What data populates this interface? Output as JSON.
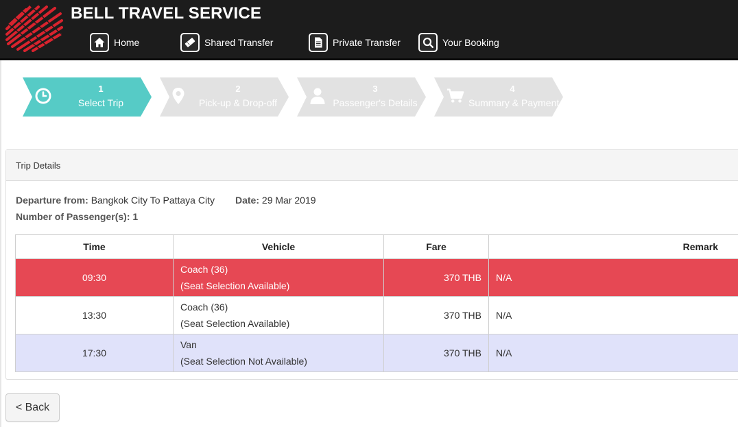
{
  "header": {
    "brand": "BELL TRAVEL SERVICE",
    "colors": {
      "background": "#1c1c1c",
      "logo_red": "#d9232e"
    },
    "nav": [
      {
        "label": "Home",
        "icon": "home-icon"
      },
      {
        "label": "Shared Transfer",
        "icon": "ticket-icon"
      },
      {
        "label": "Private Transfer",
        "icon": "document-icon"
      },
      {
        "label": "Your Booking",
        "icon": "search-icon"
      }
    ]
  },
  "steps": [
    {
      "number": "1",
      "label": "Select Trip",
      "icon": "clock-icon",
      "active": true
    },
    {
      "number": "2",
      "label": "Pick-up & Drop-off",
      "icon": "map-pin-icon",
      "active": false
    },
    {
      "number": "3",
      "label": "Passenger's Details",
      "icon": "user-icon",
      "active": false
    },
    {
      "number": "4",
      "label": "Summary & Payment",
      "icon": "cart-icon",
      "active": false
    }
  ],
  "step_colors": {
    "active": "#56cbc6",
    "inactive": "#e2e2e2"
  },
  "trip": {
    "panel_title": "Trip Details",
    "departure_label": "Departure from:",
    "departure_value": "Bangkok City To Pattaya City",
    "date_label": "Date:",
    "date_value": "29 Mar 2019",
    "passengers_label": "Number of Passenger(s):",
    "passengers_value": "1"
  },
  "table": {
    "headers": [
      "Time",
      "Vehicle",
      "Fare",
      "Remark"
    ],
    "rows": [
      {
        "time": "09:30",
        "vehicle": "Coach (36)",
        "seat": "(Seat Selection Available)",
        "fare": "370 THB",
        "remark": "N/A",
        "selected": true
      },
      {
        "time": "13:30",
        "vehicle": "Coach (36)",
        "seat": "(Seat Selection Available)",
        "fare": "370 THB",
        "remark": "N/A",
        "selected": false
      },
      {
        "time": "17:30",
        "vehicle": "Van",
        "seat": "(Seat Selection Not Available)",
        "fare": "370 THB",
        "remark": "N/A",
        "selected": false
      }
    ],
    "colors": {
      "selected": "#e64854",
      "alt": "#e0e2fa"
    }
  },
  "back_button": {
    "label": "< Back"
  }
}
